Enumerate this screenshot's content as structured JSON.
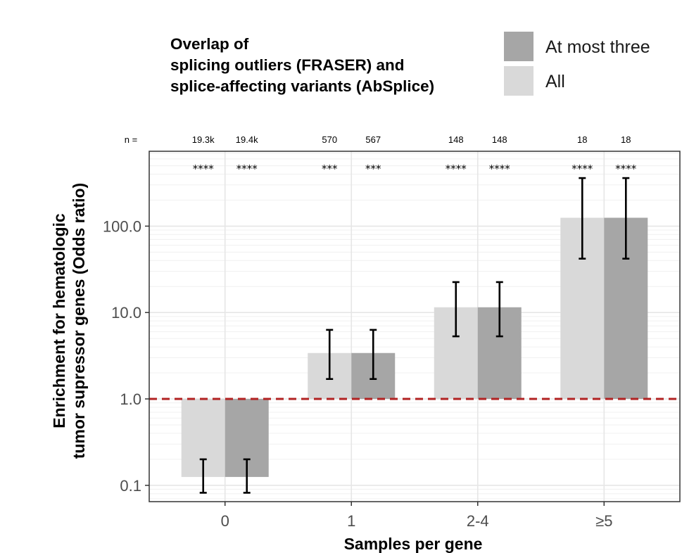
{
  "legend": {
    "title_lines": [
      "Overlap of",
      "splicing outliers (FRASER) and",
      "splice-affecting variants (AbSplice)"
    ],
    "entries": [
      {
        "label": "At most three",
        "color": "#a6a6a6"
      },
      {
        "label": "All",
        "color": "#d9d9d9"
      }
    ]
  },
  "chart_data": {
    "type": "bar",
    "title": "",
    "xlabel": "Samples per gene",
    "ylabel_lines": [
      "Enrichment for hematologic",
      "tumor supressor genes (Odds ratio)"
    ],
    "yscale": "log10",
    "ylim": [
      0.075,
      600
    ],
    "y_ticks": [
      0.1,
      1.0,
      10.0,
      100.0
    ],
    "y_tick_labels": [
      "0.1",
      "1.0",
      "10.0",
      "100.0"
    ],
    "categories": [
      "0",
      "1",
      "2-4",
      "≥5"
    ],
    "n_prefix": "n =",
    "reference_line": {
      "y": 1.0,
      "color": "#b22222",
      "style": "dashed"
    },
    "series": [
      {
        "name": "All",
        "color": "#d9d9d9",
        "values": [
          0.125,
          3.4,
          11.5,
          125
        ],
        "ci_low": [
          0.082,
          1.7,
          5.3,
          42
        ],
        "ci_high": [
          0.2,
          6.3,
          22.5,
          360
        ],
        "n_labels": [
          "19.3k",
          "570",
          "148",
          "18"
        ],
        "significance": [
          "****",
          "***",
          "****",
          "****"
        ]
      },
      {
        "name": "At most three",
        "color": "#a6a6a6",
        "values": [
          0.125,
          3.4,
          11.5,
          125
        ],
        "ci_low": [
          0.082,
          1.7,
          5.3,
          42
        ],
        "ci_high": [
          0.2,
          6.3,
          22.5,
          360
        ],
        "n_labels": [
          "19.4k",
          "567",
          "148",
          "18"
        ],
        "significance": [
          "****",
          "***",
          "****",
          "****"
        ]
      }
    ]
  }
}
